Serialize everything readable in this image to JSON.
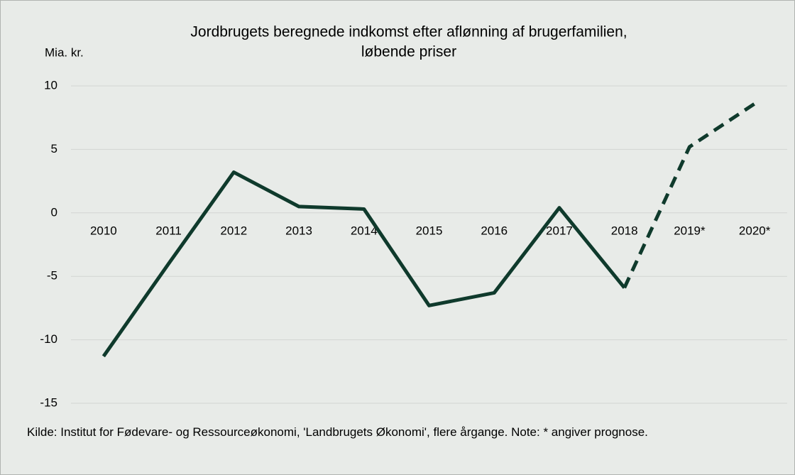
{
  "chart_data": {
    "type": "line",
    "title": [
      "Jordbrugets beregnede indkomst efter aflønning af brugerfamilien,",
      "løbende priser"
    ],
    "y_label": "Mia. kr.",
    "categories": [
      "2010",
      "2011",
      "2012",
      "2013",
      "2014",
      "2015",
      "2016",
      "2017",
      "2018",
      "2019*",
      "2020*"
    ],
    "series": [
      {
        "color": "#0f3a2c",
        "style": "solid",
        "values": [
          -11.3,
          -4.0,
          3.2,
          0.5,
          0.3,
          -7.3,
          -6.3,
          0.4,
          -5.9,
          null,
          null
        ]
      },
      {
        "color": "#0f3a2c",
        "style": "dashed",
        "values": [
          null,
          null,
          null,
          null,
          null,
          null,
          null,
          null,
          -5.9,
          5.2,
          8.6
        ]
      }
    ],
    "ylim": [
      -15,
      10
    ],
    "yticks": [
      -15,
      -10,
      -5,
      0,
      5,
      10
    ],
    "grid": true,
    "note": "Kilde: Institut for Fødevare- og Ressourceøkonomi, 'Landbrugets Økonomi', flere årgange. Note: * angiver prognose."
  }
}
